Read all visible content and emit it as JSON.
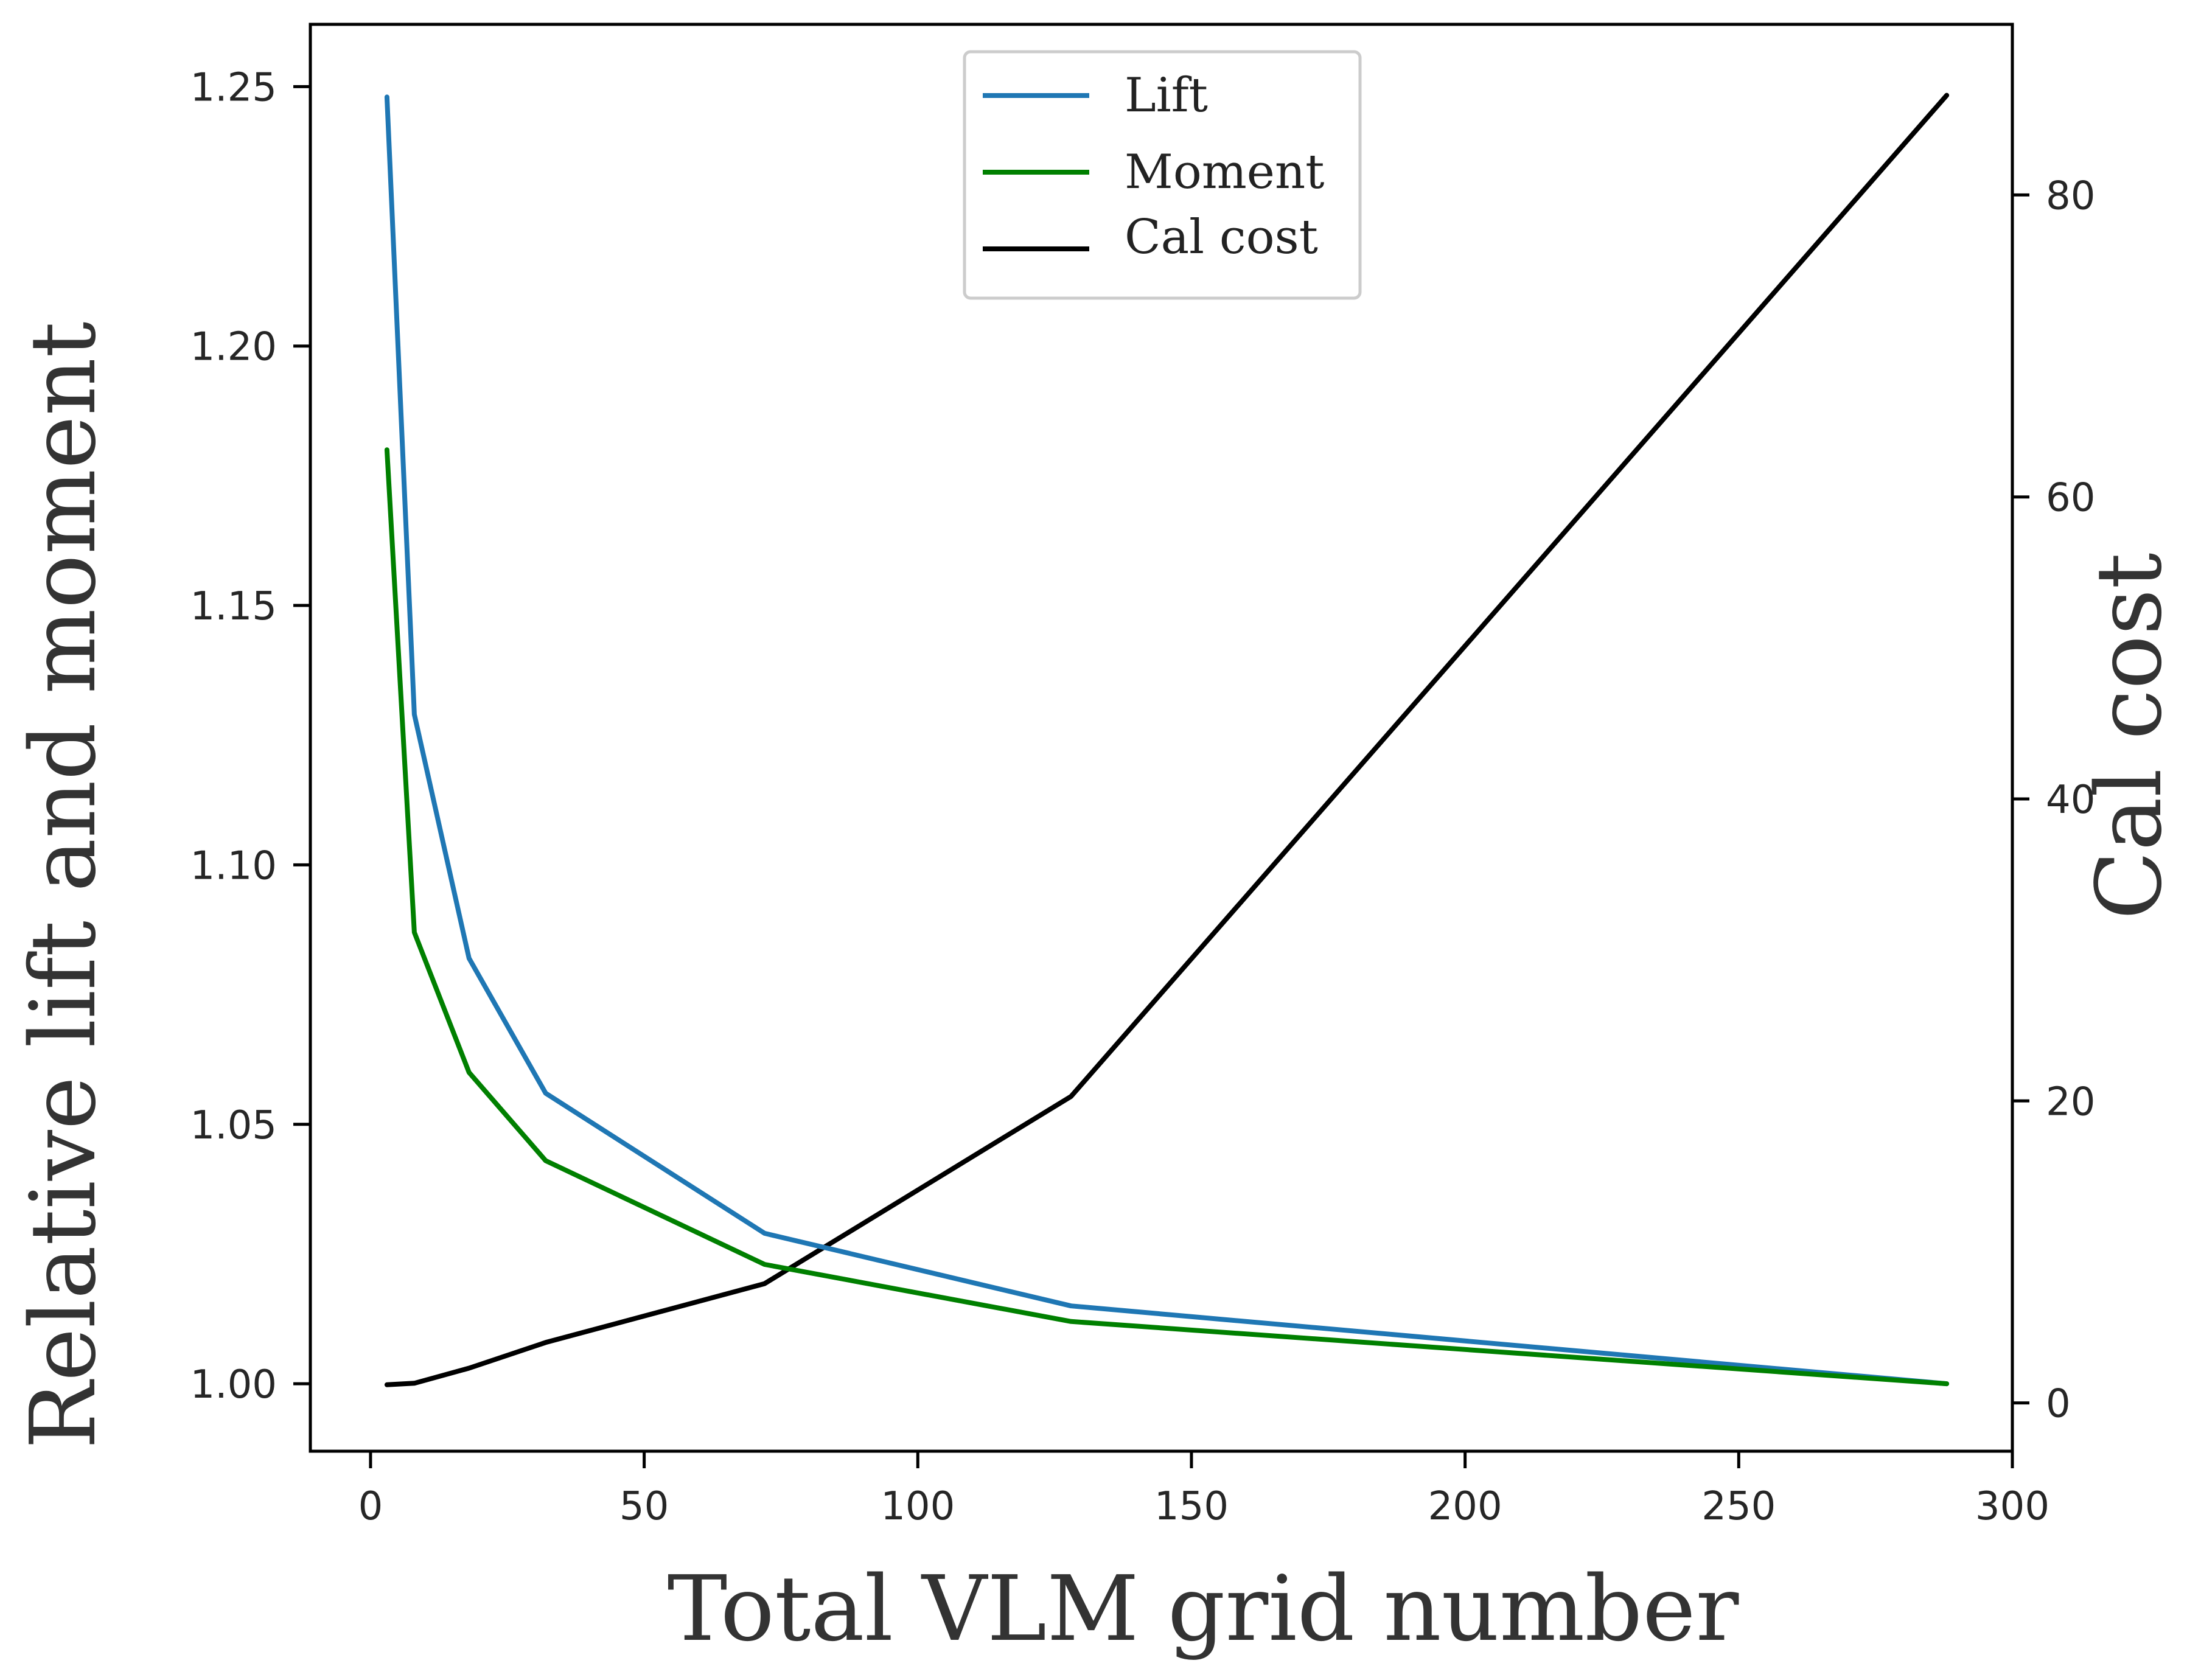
{
  "chart_data": {
    "type": "line",
    "title": "",
    "xlabel": "Total VLM grid number",
    "ylabel": "Relative lift and moment",
    "y2label": "Cal cost",
    "xlim": [
      -11,
      300
    ],
    "ylim": [
      0.987,
      1.262
    ],
    "y2lim": [
      -3.2,
      91.3
    ],
    "xticks": [
      0,
      50,
      100,
      150,
      200,
      250,
      300
    ],
    "yticks": [
      1.0,
      1.05,
      1.1,
      1.15,
      1.2,
      1.25
    ],
    "ytick_labels": [
      "1.00",
      "1.05",
      "1.10",
      "1.15",
      "1.20",
      "1.25"
    ],
    "y2ticks": [
      0,
      20,
      40,
      60,
      80
    ],
    "grid": false,
    "legend_position": "top-center",
    "series": [
      {
        "name": "Lift",
        "color": "#1f77b4",
        "axis": "left",
        "x": [
          3,
          8,
          18,
          32,
          72,
          128,
          288
        ],
        "y": [
          1.248,
          1.129,
          1.082,
          1.056,
          1.029,
          1.015,
          1.0
        ]
      },
      {
        "name": "Moment",
        "color": "#008000",
        "axis": "left",
        "x": [
          3,
          8,
          18,
          32,
          72,
          128,
          288
        ],
        "y": [
          1.18,
          1.087,
          1.06,
          1.043,
          1.023,
          1.012,
          1.0
        ]
      },
      {
        "name": "Cal cost",
        "color": "#000000",
        "axis": "right",
        "x": [
          3,
          8,
          18,
          32,
          72,
          128,
          288
        ],
        "y": [
          1.2,
          1.3,
          2.3,
          4.0,
          7.9,
          20.3,
          86.6
        ]
      }
    ]
  }
}
